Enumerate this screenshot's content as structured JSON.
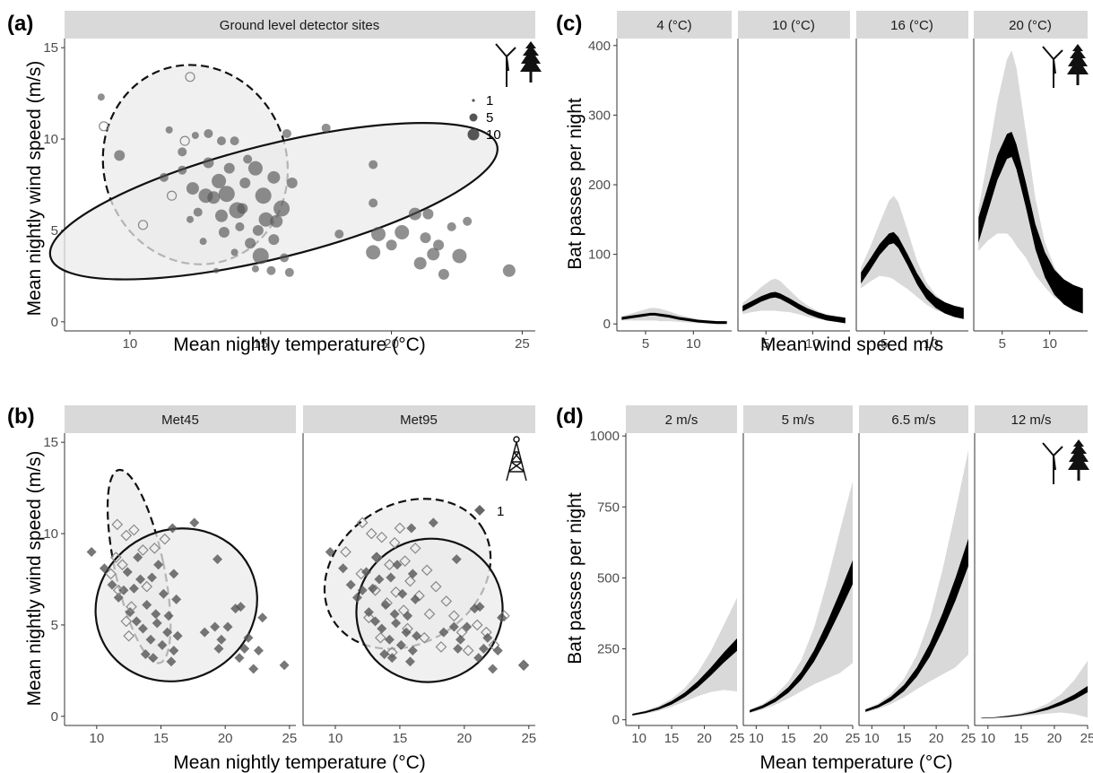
{
  "panels": {
    "a": {
      "letter": "(a)",
      "strip": "Ground level detector sites"
    },
    "b": {
      "letter": "(b)",
      "strips": [
        "Met45",
        "Met95"
      ]
    },
    "c": {
      "letter": "(c)",
      "strips": [
        "4 (°C)",
        "10 (°C)",
        "16 (°C)",
        "20 (°C)"
      ]
    },
    "d": {
      "letter": "(d)",
      "strips": [
        "2 m/s",
        "5 m/s",
        "6.5 m/s",
        "12 m/s"
      ]
    }
  },
  "legend_a": {
    "labels": [
      "1",
      "5",
      "10"
    ],
    "sizes": [
      1,
      5,
      10
    ]
  },
  "legend_b": {
    "labels": [
      "1"
    ]
  },
  "icons": [
    "wind-turbine-icon",
    "tree-icon",
    "met-tower-icon"
  ],
  "colors": {
    "strip_bg": "#d9d9d9",
    "ellipse_fill": "#ebebeb",
    "point_fill": "#555555",
    "band_outer": "#d9d9d9",
    "band_inner": "#000000"
  },
  "chart_data": [
    {
      "id": "a",
      "type": "scatter",
      "title": "Ground level detector sites",
      "xlabel": "Mean nightly temperature (°C)",
      "ylabel": "Mean nightly wind speed (m/s)",
      "xlim": [
        7.5,
        25.5
      ],
      "ylim": [
        -0.5,
        15.5
      ],
      "xticks": [
        10,
        15,
        20,
        25
      ],
      "yticks": [
        0,
        5,
        10,
        15
      ],
      "grid": false,
      "legend": "top-right",
      "size_legend": [
        1,
        5,
        10
      ],
      "ellipses": [
        {
          "style": "dashed",
          "cx": 12.5,
          "cy": 8.6,
          "rx": 3.5,
          "ry": 5.5,
          "angle": -18
        },
        {
          "style": "solid",
          "cx": 15.5,
          "cy": 6.6,
          "rx": 8.8,
          "ry": 3.1,
          "angle": -14
        }
      ],
      "points": [
        [
          8.9,
          12.3,
          4,
          "f"
        ],
        [
          9.0,
          10.7,
          4,
          "o"
        ],
        [
          12.3,
          13.4,
          4,
          "o"
        ],
        [
          11.5,
          10.5,
          4,
          "f"
        ],
        [
          12.1,
          9.9,
          4,
          "o"
        ],
        [
          12.5,
          10.2,
          4,
          "f"
        ],
        [
          13.0,
          10.3,
          5,
          "f"
        ],
        [
          13.5,
          9.9,
          5,
          "f"
        ],
        [
          14.0,
          9.9,
          5,
          "f"
        ],
        [
          16.0,
          10.3,
          5,
          "f"
        ],
        [
          17.5,
          10.6,
          5,
          "f"
        ],
        [
          19.3,
          8.6,
          5,
          "f"
        ],
        [
          9.6,
          9.1,
          6,
          "f"
        ],
        [
          10.5,
          5.3,
          4,
          "o"
        ],
        [
          11.3,
          7.9,
          5,
          "f"
        ],
        [
          11.6,
          6.9,
          4,
          "o"
        ],
        [
          12.0,
          8.3,
          5,
          "f"
        ],
        [
          12.4,
          7.3,
          7,
          "f"
        ],
        [
          12.6,
          6.0,
          5,
          "f"
        ],
        [
          13.0,
          8.7,
          6,
          "f"
        ],
        [
          13.2,
          6.8,
          7,
          "f"
        ],
        [
          13.4,
          7.7,
          8,
          "f"
        ],
        [
          13.8,
          8.4,
          6,
          "f"
        ],
        [
          14.1,
          6.1,
          9,
          "f"
        ],
        [
          14.4,
          7.6,
          6,
          "f"
        ],
        [
          14.8,
          8.4,
          8,
          "f"
        ],
        [
          15.1,
          6.9,
          9,
          "f"
        ],
        [
          15.5,
          7.9,
          7,
          "f"
        ],
        [
          15.8,
          6.2,
          9,
          "f"
        ],
        [
          13.6,
          4.9,
          6,
          "f"
        ],
        [
          14.2,
          5.2,
          5,
          "f"
        ],
        [
          14.6,
          4.3,
          6,
          "f"
        ],
        [
          15.0,
          3.6,
          9,
          "f"
        ],
        [
          15.5,
          4.5,
          6,
          "f"
        ],
        [
          15.9,
          3.5,
          5,
          "f"
        ],
        [
          16.1,
          2.7,
          5,
          "f"
        ],
        [
          14.0,
          3.8,
          4,
          "f"
        ],
        [
          12.3,
          5.6,
          4,
          "f"
        ],
        [
          12.8,
          4.4,
          4,
          "f"
        ],
        [
          13.3,
          2.8,
          3,
          "f"
        ],
        [
          14.8,
          2.9,
          4,
          "f"
        ],
        [
          15.4,
          2.8,
          5,
          "f"
        ],
        [
          12.9,
          6.9,
          8,
          "f"
        ],
        [
          13.7,
          7.0,
          9,
          "f"
        ],
        [
          14.3,
          6.2,
          6,
          "f"
        ],
        [
          15.2,
          5.6,
          8,
          "f"
        ],
        [
          15.6,
          5.5,
          7,
          "f"
        ],
        [
          16.2,
          7.6,
          6,
          "f"
        ],
        [
          14.5,
          8.9,
          5,
          "f"
        ],
        [
          12.0,
          9.3,
          5,
          "f"
        ],
        [
          13.5,
          5.8,
          7,
          "f"
        ],
        [
          14.9,
          5.0,
          6,
          "f"
        ],
        [
          18.0,
          4.8,
          5,
          "f"
        ],
        [
          19.3,
          6.5,
          5,
          "f"
        ],
        [
          19.5,
          4.8,
          8,
          "f"
        ],
        [
          20.0,
          4.2,
          6,
          "f"
        ],
        [
          20.4,
          4.9,
          8,
          "f"
        ],
        [
          20.9,
          5.9,
          7,
          "f"
        ],
        [
          21.1,
          3.2,
          7,
          "f"
        ],
        [
          21.3,
          4.6,
          6,
          "f"
        ],
        [
          21.6,
          3.7,
          7,
          "f"
        ],
        [
          21.8,
          4.2,
          6,
          "f"
        ],
        [
          22.0,
          2.6,
          6,
          "f"
        ],
        [
          22.3,
          5.2,
          5,
          "f"
        ],
        [
          22.6,
          3.6,
          8,
          "f"
        ],
        [
          22.9,
          5.5,
          5,
          "f"
        ],
        [
          24.5,
          2.8,
          7,
          "f"
        ],
        [
          21.4,
          5.9,
          6,
          "f"
        ],
        [
          19.3,
          3.8,
          8,
          "f"
        ]
      ]
    },
    {
      "id": "b",
      "type": "scatter",
      "facets": [
        "Met45",
        "Met95"
      ],
      "xlabel": "Mean nightly temperature (°C)",
      "ylabel": "Mean nightly wind speed (m/s)",
      "xlim": [
        7.5,
        25.5
      ],
      "ylim": [
        -0.5,
        15.5
      ],
      "xticks": [
        10,
        15,
        20,
        25
      ],
      "yticks": [
        0,
        5,
        10,
        15
      ],
      "grid": false,
      "legend": "top-right",
      "legend_value": 1,
      "facet_ellipses": [
        [
          {
            "style": "dashed",
            "cx": 13.3,
            "cy": 8.2,
            "rx": 1.9,
            "ry": 5.4,
            "angle": -12
          },
          {
            "style": "solid",
            "cx": 16.2,
            "cy": 6.1,
            "rx": 6.4,
            "ry": 4.1,
            "angle": -27
          }
        ],
        [
          {
            "style": "dashed",
            "cx": 15.6,
            "cy": 7.8,
            "rx": 6.8,
            "ry": 3.8,
            "angle": -32
          },
          {
            "style": "solid",
            "cx": 17.3,
            "cy": 5.8,
            "rx": 5.7,
            "ry": 3.9,
            "angle": -26
          }
        ]
      ],
      "points": [
        [
          9.6,
          9.0
        ],
        [
          10.6,
          8.1
        ],
        [
          11.2,
          7.2
        ],
        [
          11.7,
          6.5
        ],
        [
          12.4,
          7.9
        ],
        [
          12.9,
          7.0
        ],
        [
          13.4,
          7.5
        ],
        [
          13.9,
          6.1
        ],
        [
          14.3,
          7.6
        ],
        [
          14.8,
          8.3
        ],
        [
          15.2,
          6.7
        ],
        [
          15.6,
          5.5
        ],
        [
          16.0,
          7.8
        ],
        [
          16.2,
          6.4
        ],
        [
          13.1,
          5.2
        ],
        [
          13.6,
          4.8
        ],
        [
          14.2,
          4.2
        ],
        [
          14.7,
          5.1
        ],
        [
          15.1,
          3.9
        ],
        [
          15.5,
          4.6
        ],
        [
          16.0,
          3.6
        ],
        [
          16.3,
          4.4
        ],
        [
          13.8,
          3.4
        ],
        [
          12.6,
          5.7
        ],
        [
          14.4,
          3.2
        ],
        [
          15.8,
          3.0
        ],
        [
          15.9,
          10.3
        ],
        [
          17.6,
          10.6
        ],
        [
          19.4,
          8.6
        ],
        [
          18.4,
          4.6
        ],
        [
          19.2,
          4.9
        ],
        [
          19.7,
          4.2
        ],
        [
          20.2,
          4.9
        ],
        [
          20.8,
          5.9
        ],
        [
          21.1,
          3.2
        ],
        [
          21.5,
          3.7
        ],
        [
          21.8,
          4.3
        ],
        [
          22.2,
          2.6
        ],
        [
          22.6,
          3.6
        ],
        [
          22.9,
          5.4
        ],
        [
          24.6,
          2.8
        ],
        [
          21.2,
          6.0
        ],
        [
          19.5,
          3.7
        ],
        [
          12.1,
          6.9
        ],
        [
          13.2,
          8.7
        ],
        [
          14.6,
          5.6
        ]
      ],
      "open_points": [
        [
          11.6,
          10.5
        ],
        [
          12.3,
          9.9
        ],
        [
          12.9,
          10.2
        ],
        [
          11.1,
          7.8
        ],
        [
          11.7,
          6.9
        ],
        [
          12.7,
          6.0
        ],
        [
          13.6,
          9.1
        ],
        [
          12.3,
          5.2
        ],
        [
          15.3,
          9.7
        ],
        [
          11.5,
          8.7
        ],
        [
          12.0,
          8.3
        ],
        [
          13.9,
          7.1
        ],
        [
          14.5,
          9.2
        ],
        [
          12.5,
          4.4
        ]
      ],
      "facet2_open_points": [
        [
          10.8,
          9.0
        ],
        [
          12.0,
          7.8
        ],
        [
          12.1,
          10.6
        ],
        [
          12.8,
          10.0
        ],
        [
          13.2,
          8.7
        ],
        [
          13.6,
          9.8
        ],
        [
          14.2,
          8.3
        ],
        [
          14.6,
          9.5
        ],
        [
          15.0,
          10.3
        ],
        [
          15.4,
          8.5
        ],
        [
          15.8,
          7.4
        ],
        [
          16.2,
          9.2
        ],
        [
          13.1,
          6.9
        ],
        [
          14.0,
          6.2
        ],
        [
          14.7,
          6.8
        ],
        [
          15.3,
          5.8
        ],
        [
          16.5,
          6.6
        ],
        [
          17.1,
          8.0
        ],
        [
          17.8,
          7.1
        ],
        [
          18.6,
          6.3
        ],
        [
          19.2,
          5.5
        ],
        [
          19.8,
          4.6
        ],
        [
          20.3,
          3.6
        ],
        [
          21.0,
          5.0
        ],
        [
          21.7,
          4.6
        ],
        [
          22.3,
          3.9
        ],
        [
          23.1,
          5.5
        ],
        [
          24.6,
          2.8
        ],
        [
          12.6,
          5.4
        ],
        [
          13.5,
          4.3
        ],
        [
          14.4,
          3.5
        ],
        [
          15.6,
          4.8
        ],
        [
          16.9,
          4.3
        ],
        [
          18.2,
          3.8
        ],
        [
          17.3,
          5.6
        ]
      ]
    },
    {
      "id": "c",
      "type": "line",
      "facets": [
        "4 (°C)",
        "10 (°C)",
        "16 (°C)",
        "20 (°C)"
      ],
      "xlabel": "Mean wind speed m/s",
      "ylabel": "Bat passes per night",
      "xlim": [
        2,
        14
      ],
      "ylim": [
        -10,
        410
      ],
      "xticks": [
        5,
        10
      ],
      "yticks": [
        0,
        100,
        200,
        300,
        400
      ],
      "grid": false,
      "x": [
        2.5,
        3.5,
        4.5,
        5.5,
        6.0,
        6.5,
        7.5,
        8.5,
        9.5,
        10.5,
        11.5,
        12.5,
        13.5
      ],
      "series": [
        {
          "facet": "4 (°C)",
          "values": [
            8,
            10,
            12,
            14,
            14,
            13,
            11,
            8,
            6,
            4,
            3,
            2,
            2
          ],
          "inner_halfwidth": 2,
          "outer_halfwidth": [
            3,
            5,
            7,
            9,
            9,
            9,
            7,
            5,
            4,
            3,
            2,
            2,
            1
          ]
        },
        {
          "facet": "10 (°C)",
          "values": [
            22,
            29,
            36,
            41,
            42,
            40,
            33,
            25,
            18,
            13,
            9,
            7,
            5
          ],
          "inner_halfwidth": 4,
          "outer_halfwidth": [
            8,
            12,
            17,
            22,
            23,
            22,
            16,
            11,
            8,
            6,
            4,
            3,
            3
          ]
        },
        {
          "facet": "16 (°C)",
          "values": [
            66,
            86,
            107,
            122,
            124,
            117,
            92,
            65,
            44,
            31,
            23,
            18,
            15
          ],
          "inner_halfwidth": 8,
          "outer_halfwidth": [
            15,
            25,
            38,
            55,
            60,
            58,
            42,
            26,
            16,
            11,
            8,
            6,
            5
          ]
        },
        {
          "facet": "20 (°C)",
          "values": [
            135,
            180,
            225,
            255,
            258,
            240,
            185,
            125,
            85,
            60,
            46,
            38,
            33
          ],
          "inner_halfwidth": 18,
          "outer_halfwidth": [
            30,
            60,
            95,
            125,
            135,
            128,
            90,
            55,
            32,
            22,
            15,
            11,
            9
          ]
        }
      ]
    },
    {
      "id": "d",
      "type": "line",
      "facets": [
        "2 m/s",
        "5 m/s",
        "6.5 m/s",
        "12 m/s"
      ],
      "xlabel": "Mean temperature (°C)",
      "ylabel": "Bat passes per night",
      "xlim": [
        8,
        25
      ],
      "ylim": [
        -20,
        1010
      ],
      "xticks": [
        10,
        15,
        20,
        25
      ],
      "yticks": [
        0,
        250,
        500,
        750,
        1000
      ],
      "grid": false,
      "x": [
        9,
        11,
        13,
        15,
        17,
        19,
        21,
        23,
        25
      ],
      "series": [
        {
          "facet": "2 m/s",
          "values": [
            18,
            27,
            40,
            60,
            88,
            125,
            170,
            220,
            265
          ],
          "inner_halfwidth": [
            3,
            3,
            4,
            6,
            8,
            11,
            14,
            18,
            22
          ],
          "outer_halfwidth": [
            4,
            6,
            9,
            14,
            24,
            42,
            72,
            115,
            165
          ]
        },
        {
          "facet": "5 m/s",
          "values": [
            30,
            46,
            70,
            105,
            155,
            225,
            315,
            415,
            520
          ],
          "inner_halfwidth": [
            4,
            5,
            7,
            10,
            14,
            20,
            27,
            34,
            42
          ],
          "outer_halfwidth": [
            6,
            10,
            17,
            30,
            55,
            100,
            170,
            250,
            320
          ]
        },
        {
          "facet": "6.5 m/s",
          "values": [
            32,
            48,
            74,
            112,
            168,
            245,
            345,
            460,
            590
          ],
          "inner_halfwidth": [
            4,
            5,
            8,
            11,
            16,
            23,
            31,
            40,
            48
          ],
          "outer_halfwidth": [
            6,
            10,
            18,
            33,
            60,
            110,
            185,
            275,
            360
          ]
        },
        {
          "facet": "12 m/s",
          "values": [
            6,
            8,
            12,
            18,
            27,
            40,
            58,
            80,
            108
          ],
          "inner_halfwidth": [
            1,
            1,
            2,
            2,
            3,
            5,
            7,
            9,
            11
          ],
          "outer_halfwidth": [
            1,
            2,
            3,
            6,
            10,
            18,
            32,
            60,
            100
          ]
        }
      ]
    }
  ],
  "axis_titles": {
    "a_x": "Mean nightly temperature (°C)",
    "a_y": "Mean nightly wind speed (m/s)",
    "b_x": "Mean nightly temperature (°C)",
    "b_y": "Mean nightly wind speed (m/s)",
    "c_x": "Mean wind speed m/s",
    "c_y": "Bat passes per night",
    "d_x": "Mean temperature (°C)",
    "d_y": "Bat passes per night"
  }
}
